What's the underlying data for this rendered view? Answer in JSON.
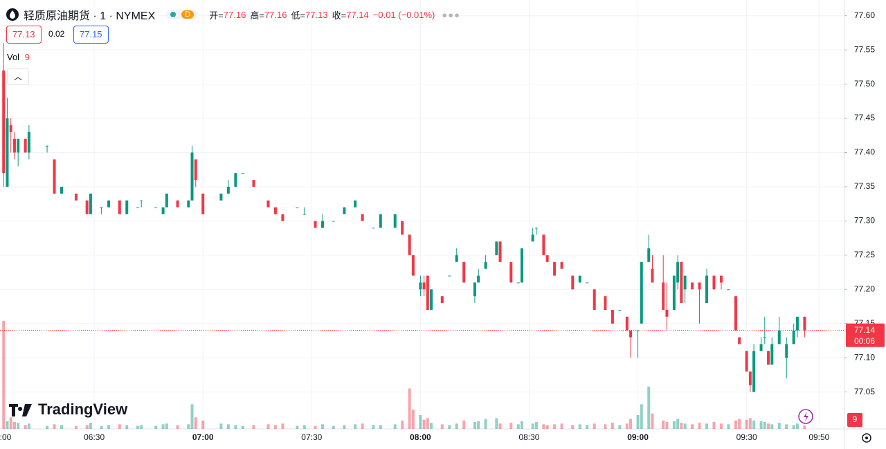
{
  "header": {
    "symbol": "轻质原油期货 · 1 · NYMEX",
    "badge": "D",
    "open_label": "开=",
    "high_label": "高=",
    "low_label": "低=",
    "close_label": "收=",
    "change": "−0.01 (−0.01%)"
  },
  "trade": {
    "sell": "77.13",
    "spread": "0.02",
    "buy": "77.15"
  },
  "vol_label": "Vol",
  "logo": "TradingView",
  "chart_data": {
    "type": "candlestick",
    "x": [
      "06:05",
      "06:06",
      "06:07",
      "06:08",
      "06:09",
      "06:11",
      "06:12",
      "06:17",
      "06:19",
      "06:21",
      "06:25",
      "06:28",
      "06:29",
      "06:32",
      "06:34",
      "06:37",
      "06:39",
      "06:42",
      "06:43",
      "06:47",
      "06:49",
      "06:50",
      "06:53",
      "06:56",
      "06:57",
      "06:58",
      "07:00",
      "07:05",
      "07:07",
      "07:09",
      "07:11",
      "07:14",
      "07:18",
      "07:20",
      "07:22",
      "07:26",
      "07:28",
      "07:31",
      "07:33",
      "07:36",
      "07:39",
      "07:42",
      "07:44",
      "07:47",
      "07:49",
      "07:53",
      "07:55",
      "07:57",
      "07:58",
      "08:00",
      "08:01",
      "08:02",
      "08:03",
      "08:06",
      "08:08",
      "08:10",
      "08:12",
      "08:15",
      "08:16",
      "08:18",
      "08:21",
      "08:22",
      "08:25",
      "08:27",
      "08:28",
      "08:31",
      "08:32",
      "08:34",
      "08:35",
      "08:37",
      "08:39",
      "08:42",
      "08:44",
      "08:46",
      "08:48",
      "08:51",
      "08:53",
      "08:55",
      "08:57",
      "08:58",
      "09:00",
      "09:01",
      "09:03",
      "09:04",
      "09:07",
      "09:08",
      "09:10",
      "09:11",
      "09:12",
      "09:13",
      "09:15",
      "09:17",
      "09:19",
      "09:21",
      "09:23",
      "09:25",
      "09:27",
      "09:28",
      "09:30",
      "09:31",
      "09:32",
      "09:34",
      "09:35",
      "09:36",
      "09:37",
      "09:39",
      "09:41",
      "09:43",
      "09:44",
      "09:46"
    ],
    "open": [
      77.52,
      77.35,
      77.44,
      77.42,
      77.4,
      77.42,
      77.4,
      77.41,
      77.39,
      77.34,
      77.34,
      77.33,
      77.31,
      77.32,
      77.32,
      77.33,
      77.31,
      77.32,
      77.33,
      77.32,
      77.31,
      77.32,
      77.33,
      77.32,
      77.33,
      77.39,
      77.34,
      77.33,
      77.34,
      77.35,
      77.37,
      77.36,
      77.33,
      77.32,
      77.31,
      77.32,
      77.31,
      77.3,
      77.29,
      77.3,
      77.31,
      77.32,
      77.31,
      77.29,
      77.29,
      77.29,
      77.3,
      77.28,
      77.25,
      77.2,
      77.21,
      77.22,
      77.17,
      77.19,
      77.22,
      77.24,
      77.24,
      77.19,
      77.21,
      77.23,
      77.25,
      77.27,
      77.24,
      77.21,
      77.21,
      77.27,
      77.29,
      77.28,
      77.25,
      77.24,
      77.24,
      77.22,
      77.21,
      77.21,
      77.2,
      77.19,
      77.17,
      77.17,
      77.16,
      77.14,
      77.14,
      77.15,
      77.24,
      77.23,
      77.21,
      77.17,
      77.17,
      77.21,
      77.24,
      77.2,
      77.21,
      77.21,
      77.18,
      77.22,
      77.22,
      77.2,
      77.19,
      77.13,
      77.11,
      77.08,
      77.05,
      77.11,
      77.13,
      77.11,
      77.09,
      77.12,
      77.1,
      77.12,
      77.14,
      77.16
    ],
    "high": [
      77.56,
      77.48,
      77.45,
      77.43,
      77.42,
      77.42,
      77.44,
      77.41,
      77.39,
      77.35,
      77.34,
      77.33,
      77.34,
      77.32,
      77.33,
      77.33,
      77.33,
      77.32,
      77.33,
      77.32,
      77.32,
      77.34,
      77.33,
      77.33,
      77.41,
      77.39,
      77.34,
      77.34,
      77.36,
      77.37,
      77.37,
      77.36,
      77.33,
      77.32,
      77.31,
      77.32,
      77.32,
      77.3,
      77.31,
      77.3,
      77.32,
      77.33,
      77.31,
      77.29,
      77.31,
      77.31,
      77.3,
      77.28,
      77.25,
      77.22,
      77.22,
      77.22,
      77.2,
      77.19,
      77.22,
      77.26,
      77.24,
      77.21,
      77.23,
      77.25,
      77.27,
      77.27,
      77.24,
      77.21,
      77.26,
      77.29,
      77.29,
      77.28,
      77.25,
      77.24,
      77.24,
      77.22,
      77.22,
      77.21,
      77.2,
      77.19,
      77.17,
      77.17,
      77.16,
      77.14,
      77.14,
      77.24,
      77.28,
      77.25,
      77.25,
      77.21,
      77.22,
      77.25,
      77.24,
      77.22,
      77.21,
      77.21,
      77.23,
      77.22,
      77.22,
      77.2,
      77.19,
      77.13,
      77.11,
      77.08,
      77.12,
      77.13,
      77.16,
      77.11,
      77.13,
      77.16,
      77.13,
      77.15,
      77.16,
      77.16
    ],
    "low": [
      77.35,
      77.35,
      77.4,
      77.39,
      77.38,
      77.4,
      77.39,
      77.4,
      77.34,
      77.34,
      77.33,
      77.31,
      77.31,
      77.31,
      77.32,
      77.31,
      77.31,
      77.32,
      77.32,
      77.32,
      77.31,
      77.32,
      77.32,
      77.32,
      77.33,
      77.35,
      77.31,
      77.33,
      77.34,
      77.35,
      77.37,
      77.35,
      77.32,
      77.31,
      77.3,
      77.32,
      77.31,
      77.29,
      77.29,
      77.3,
      77.31,
      77.32,
      77.3,
      77.29,
      77.29,
      77.29,
      77.28,
      77.25,
      77.22,
      77.19,
      77.19,
      77.17,
      77.17,
      77.18,
      77.22,
      77.24,
      77.21,
      77.18,
      77.21,
      77.23,
      77.25,
      77.24,
      77.21,
      77.21,
      77.21,
      77.27,
      77.28,
      77.25,
      77.24,
      77.22,
      77.23,
      77.2,
      77.21,
      77.21,
      77.17,
      77.17,
      77.15,
      77.17,
      77.14,
      77.1,
      77.1,
      77.15,
      77.24,
      77.21,
      77.17,
      77.14,
      77.17,
      77.2,
      77.18,
      77.18,
      77.2,
      77.15,
      77.18,
      77.2,
      77.2,
      77.2,
      77.14,
      77.12,
      77.08,
      77.05,
      77.05,
      77.11,
      77.12,
      77.09,
      77.09,
      77.12,
      77.07,
      77.12,
      77.13,
      77.13
    ],
    "close": [
      77.37,
      77.45,
      77.43,
      77.4,
      77.42,
      77.4,
      77.43,
      77.41,
      77.34,
      77.35,
      77.33,
      77.31,
      77.34,
      77.32,
      77.33,
      77.31,
      77.33,
      77.32,
      77.33,
      77.32,
      77.32,
      77.34,
      77.32,
      77.33,
      77.4,
      77.36,
      77.31,
      77.34,
      77.35,
      77.37,
      77.37,
      77.35,
      77.32,
      77.31,
      77.3,
      77.32,
      77.31,
      77.29,
      77.3,
      77.3,
      77.32,
      77.33,
      77.3,
      77.29,
      77.31,
      77.31,
      77.28,
      77.25,
      77.22,
      77.21,
      77.2,
      77.17,
      77.2,
      77.18,
      77.22,
      77.25,
      77.21,
      77.21,
      77.22,
      77.24,
      77.27,
      77.24,
      77.21,
      77.21,
      77.26,
      77.28,
      77.29,
      77.25,
      77.24,
      77.22,
      77.23,
      77.2,
      77.22,
      77.21,
      77.17,
      77.17,
      77.15,
      77.17,
      77.14,
      77.13,
      77.14,
      77.24,
      77.26,
      77.21,
      77.17,
      77.16,
      77.22,
      77.24,
      77.18,
      77.22,
      77.2,
      77.2,
      77.22,
      77.2,
      77.21,
      77.2,
      77.14,
      77.12,
      77.08,
      77.06,
      77.11,
      77.12,
      77.13,
      77.09,
      77.12,
      77.14,
      77.12,
      77.14,
      77.16,
      77.14
    ],
    "volume": [
      280,
      20,
      30,
      18,
      16,
      10,
      14,
      8,
      12,
      10,
      8,
      10,
      16,
      8,
      10,
      12,
      10,
      8,
      10,
      8,
      12,
      14,
      10,
      12,
      64,
      30,
      22,
      14,
      12,
      10,
      8,
      10,
      12,
      10,
      14,
      8,
      10,
      8,
      12,
      8,
      10,
      12,
      14,
      10,
      10,
      12,
      22,
      105,
      50,
      36,
      24,
      28,
      16,
      12,
      10,
      14,
      22,
      18,
      20,
      26,
      28,
      14,
      16,
      12,
      20,
      14,
      18,
      12,
      10,
      12,
      14,
      10,
      12,
      10,
      14,
      12,
      16,
      10,
      14,
      26,
      36,
      64,
      110,
      40,
      22,
      18,
      20,
      26,
      16,
      14,
      12,
      16,
      14,
      18,
      14,
      12,
      22,
      26,
      24,
      28,
      22,
      20,
      18,
      14,
      12,
      16,
      12,
      10,
      14,
      9
    ],
    "up_color": "#089981",
    "down_color": "#f23645",
    "xlim": [
      "06:04",
      "09:57"
    ],
    "xticks": [
      {
        "value": "06:00",
        "label": ":00"
      },
      "06:30",
      "07:00",
      "07:30",
      "08:00",
      "08:30",
      "09:00",
      "09:30",
      "09:50"
    ],
    "ylim": [
      76.996,
      77.623
    ],
    "yticks": [
      {
        "value": 77.05,
        "label": "77.05"
      },
      {
        "value": 77.1,
        "label": "77.10"
      },
      {
        "value": 77.15,
        "label": "77.15"
      },
      {
        "value": 77.2,
        "label": "77.20"
      },
      {
        "value": 77.25,
        "label": "77.25"
      },
      {
        "value": 77.3,
        "label": "77.30"
      },
      {
        "value": 77.35,
        "label": "77.35"
      },
      {
        "value": 77.4,
        "label": "77.40"
      },
      {
        "value": 77.45,
        "label": "77.45"
      },
      {
        "value": 77.5,
        "label": "77.50"
      },
      {
        "value": 77.55,
        "label": "77.55"
      },
      {
        "value": 77.6,
        "label": "77.60"
      }
    ],
    "countdown": "00:06",
    "grid": true
  }
}
